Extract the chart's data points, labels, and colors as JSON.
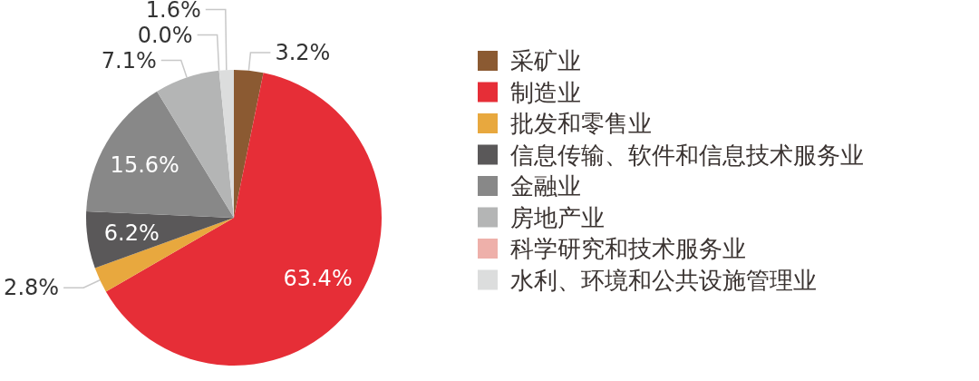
{
  "chart_data": {
    "type": "pie",
    "categories": [
      "采矿业",
      "制造业",
      "批发和零售业",
      "信息传输、软件和信息技术服务业",
      "金融业",
      "房地产业",
      "科学研究和技术服务业",
      "水利、环境和公共设施管理业"
    ],
    "values": [
      3.2,
      63.4,
      2.8,
      6.2,
      15.6,
      7.1,
      0.0,
      1.6
    ],
    "colors": [
      "#8b5a32",
      "#e62e37",
      "#e8a83e",
      "#5a5859",
      "#888888",
      "#b4b5b5",
      "#eeb0aa",
      "#dcdddd"
    ],
    "value_labels": [
      "3.2%",
      "63.4%",
      "2.8%",
      "6.2%",
      "15.6%",
      "7.1%",
      "0.0%",
      "1.6%"
    ],
    "legend": "right"
  }
}
